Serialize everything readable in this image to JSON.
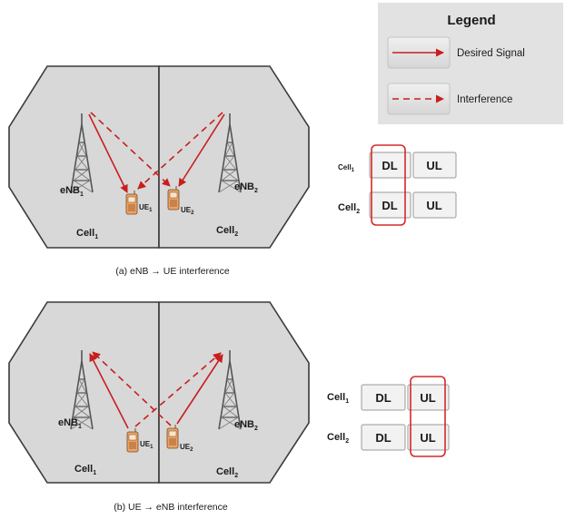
{
  "legend": {
    "title": "Legend",
    "desired_label": "Desired Signal",
    "interference_label": "Interference"
  },
  "colors": {
    "signal": "#c81e1e",
    "cell_fill": "#d8d8d8",
    "highlight": "#d62828"
  },
  "panel_a": {
    "enb1_main": "eNB",
    "enb1_sub": "1",
    "enb2_main": "eNB",
    "enb2_sub": "2",
    "ue1_main": "UE",
    "ue1_sub": "1",
    "ue2_main": "UE",
    "ue2_sub": "2",
    "cell1_main": "Cell",
    "cell1_sub": "1",
    "cell2_main": "Cell",
    "cell2_sub": "2",
    "caption": "(a) eNB →  UE interference",
    "table": {
      "row1_main": "Cell",
      "row1_sub": "1",
      "row2_main": "Cell",
      "row2_sub": "2",
      "dl": "DL",
      "ul": "UL"
    }
  },
  "panel_b": {
    "enb1_main": "eNB",
    "enb1_sub": "1",
    "enb2_main": "eNB",
    "enb2_sub": "2",
    "ue1_main": "UE",
    "ue1_sub": "1",
    "ue2_main": "UE",
    "ue2_sub": "2",
    "cell1_main": "Cell",
    "cell1_sub": "1",
    "cell2_main": "Cell",
    "cell2_sub": "2",
    "caption": "(b) UE →   eNB interference",
    "table": {
      "row1_main": "Cell",
      "row1_sub": "1",
      "row2_main": "Cell",
      "row2_sub": "2",
      "dl": "DL",
      "ul": "UL"
    }
  }
}
